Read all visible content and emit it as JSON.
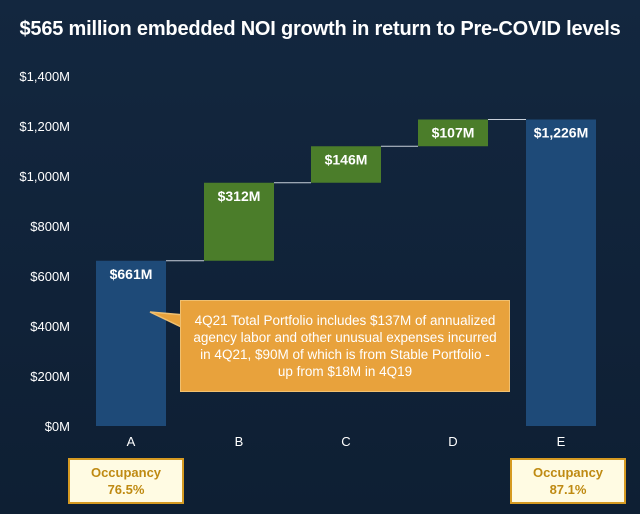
{
  "title": "$565 million embedded NOI growth in return to Pre-COVID levels",
  "colors": {
    "background": "#102238",
    "total_bar": "#1e4a78",
    "increase_bar": "#4b7d2a",
    "callout": "#e8a23c",
    "occupancy_border": "#d59a22",
    "occupancy_text": "#bf8a12"
  },
  "chart_data": {
    "type": "bar",
    "subtype": "waterfall",
    "title": "$565 million embedded NOI growth in return to Pre-COVID levels",
    "categories": [
      "A",
      "B",
      "C",
      "D",
      "E"
    ],
    "bars": [
      {
        "category": "A",
        "kind": "total",
        "start": 0,
        "end": 661,
        "label": "$661M"
      },
      {
        "category": "B",
        "kind": "increase",
        "start": 661,
        "end": 973,
        "label": "$312M"
      },
      {
        "category": "C",
        "kind": "increase",
        "start": 973,
        "end": 1119,
        "label": "$146M"
      },
      {
        "category": "D",
        "kind": "increase",
        "start": 1119,
        "end": 1226,
        "label": "$107M"
      },
      {
        "category": "E",
        "kind": "total",
        "start": 0,
        "end": 1226,
        "label": "$1,226M"
      }
    ],
    "ylim": [
      0,
      1400
    ],
    "yticks": [
      0,
      200,
      400,
      600,
      800,
      1000,
      1200,
      1400
    ],
    "ytick_labels": [
      "$0M",
      "$200M",
      "$400M",
      "$600M",
      "$800M",
      "$1,000M",
      "$1,200M",
      "$1,400M"
    ],
    "xlabel": "",
    "ylabel": "",
    "grid": false
  },
  "callout": {
    "text": "4Q21 Total Portfolio includes $137M of annualized agency labor and other unusual expenses incurred in 4Q21, $90M of which is from Stable Portfolio - up from $18M in 4Q19"
  },
  "occupancy": {
    "a": {
      "label": "Occupancy",
      "value": "76.5%"
    },
    "e": {
      "label": "Occupancy",
      "value": "87.1%"
    }
  }
}
